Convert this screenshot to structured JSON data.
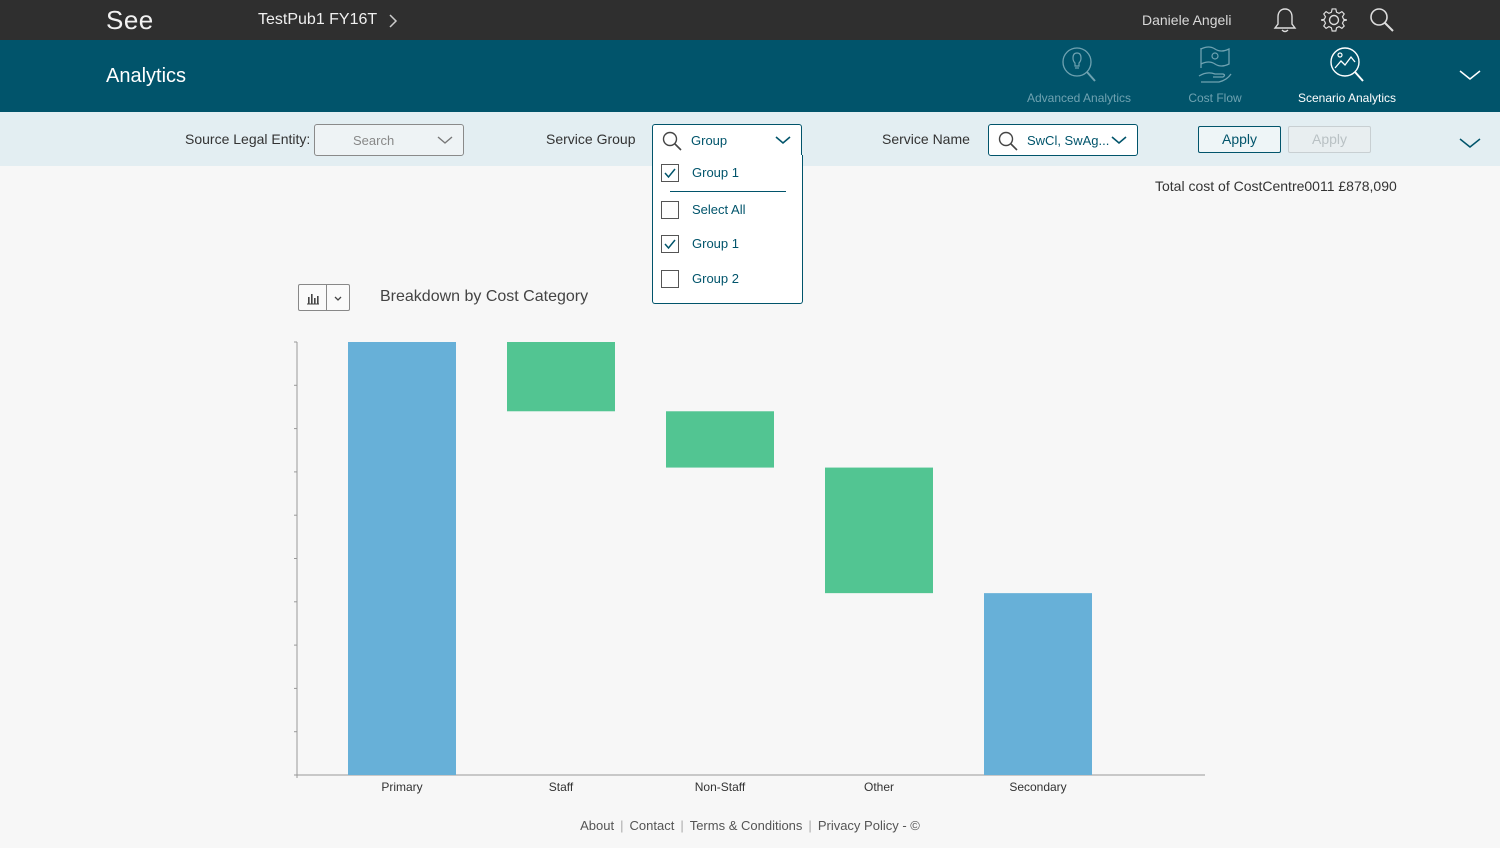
{
  "app": {
    "brand": "See",
    "breadcrumb": "TestPub1 FY16T",
    "user_name": "Daniele Angeli",
    "page_title": "Analytics"
  },
  "nav": {
    "items": [
      {
        "label": "Advanced Analytics",
        "icon": "bulb-search-icon",
        "active": false
      },
      {
        "label": "Cost Flow",
        "icon": "flag-hand-icon",
        "active": false
      },
      {
        "label": "Scenario Analytics",
        "icon": "scenario-search-icon",
        "active": true
      }
    ]
  },
  "filters": {
    "source_label": "Source Legal Entity:",
    "source_placeholder": "Search",
    "group_label": "Service Group",
    "group_value": "Group",
    "name_label": "Service Name",
    "name_value": "SwCl, SwAg...",
    "apply_label": "Apply",
    "apply_disabled_label": "Apply"
  },
  "dropdown": {
    "items": [
      {
        "label": "Group 1",
        "checked": true
      },
      {
        "label": "Select All",
        "checked": false
      },
      {
        "label": "Group 1",
        "checked": true
      },
      {
        "label": "Group 2",
        "checked": false
      }
    ]
  },
  "total_text": "Total cost of CostCentre0011 £878,090",
  "chart": {
    "title": "Breakdown by Cost Category"
  },
  "chart_data": {
    "type": "bar",
    "subtype": "waterfall",
    "title": "Breakdown by Cost Category",
    "categories": [
      "Primary",
      "Staff",
      "Non-Staff",
      "Other",
      "Secondary"
    ],
    "bars": [
      {
        "category": "Primary",
        "start": 0,
        "end": 100,
        "kind": "total"
      },
      {
        "category": "Staff",
        "start": 84,
        "end": 100,
        "kind": "delta"
      },
      {
        "category": "Non-Staff",
        "start": 71,
        "end": 84,
        "kind": "delta"
      },
      {
        "category": "Other",
        "start": 42,
        "end": 71,
        "kind": "delta"
      },
      {
        "category": "Secondary",
        "start": 0,
        "end": 42,
        "kind": "total"
      }
    ],
    "ylim": [
      0,
      100
    ],
    "y_ticks_count": 10,
    "colors": {
      "total": "#67b0d8",
      "delta": "#52c592"
    },
    "grid": false,
    "legend": "none"
  },
  "footer": {
    "links": [
      "About",
      "Contact",
      "Terms & Conditions",
      "Privacy Policy - ©"
    ]
  }
}
